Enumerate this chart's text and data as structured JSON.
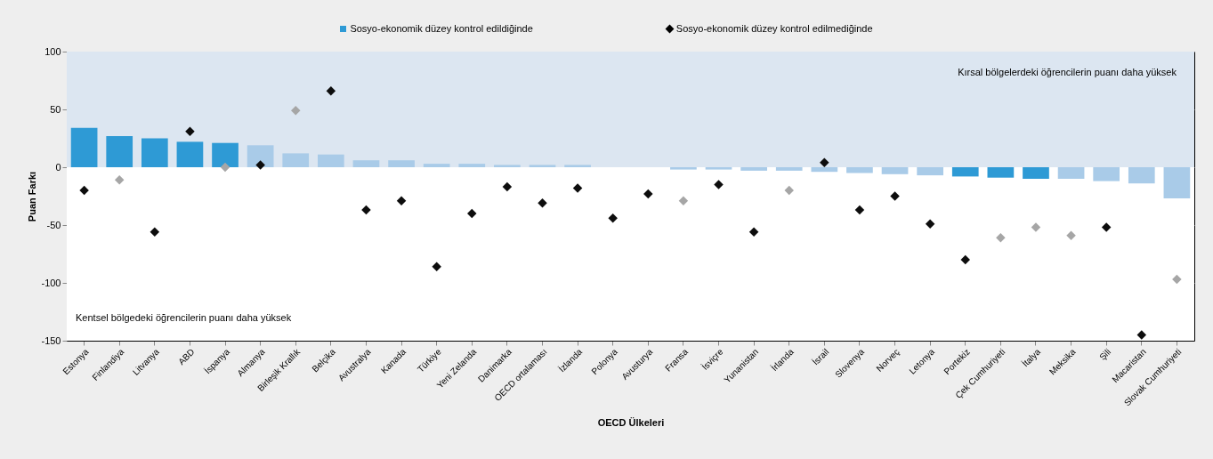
{
  "chart_data": {
    "type": "bar",
    "xlabel": "OECD Ülkeleri",
    "ylabel": "Puan Farkı",
    "categories": [
      "Estonya",
      "Finlandiya",
      "Litvanya",
      "ABD",
      "İspanya",
      "Almanya",
      "Birleşik Krallık",
      "Belçika",
      "Avustralya",
      "Kanada",
      "Türkiye",
      "Yeni Zelanda",
      "Danimarka",
      "OECD ortalaması",
      "İzlanda",
      "Polonya",
      "Avusturya",
      "Fransa",
      "İsviçre",
      "Yunanistan",
      "İrlanda",
      "İsrail",
      "Slovenya",
      "Norveç",
      "Letonya",
      "Portekiz",
      "Çek Cumhuriyeti",
      "İtalya",
      "Meksika",
      "Şili",
      "Macaristan",
      "Slovak Cumhuriyeti"
    ],
    "series": [
      {
        "name": "Sosyo-ekonomik düzey kontrol edildiğinde",
        "color": "#2e9ad5",
        "values": [
          34,
          27,
          25,
          22,
          21,
          19,
          12,
          11,
          6,
          6,
          3,
          3,
          2,
          2,
          2,
          0,
          0,
          -2,
          -2,
          -3,
          -3,
          -4,
          -5,
          -6,
          -7,
          -8,
          -9,
          -10,
          -10,
          -12,
          -14,
          -27
        ],
        "colors": [
          "#2e9ad5",
          "#2e9ad5",
          "#2e9ad5",
          "#2e9ad5",
          "#2e9ad5",
          "#a9cbe8",
          "#a9cbe8",
          "#a9cbe8",
          "#a9cbe8",
          "#a9cbe8",
          "#a9cbe8",
          "#a9cbe8",
          "#a9cbe8",
          "#a9cbe8",
          "#a9cbe8",
          "#a9cbe8",
          "#a9cbe8",
          "#a9cbe8",
          "#a9cbe8",
          "#a9cbe8",
          "#a9cbe8",
          "#a9cbe8",
          "#a9cbe8",
          "#a9cbe8",
          "#a9cbe8",
          "#2e9ad5",
          "#2e9ad5",
          "#2e9ad5",
          "#a9cbe8",
          "#a9cbe8",
          "#a9cbe8",
          "#a9cbe8"
        ]
      },
      {
        "name": "Sosyo-ekonomik düzey kontrol edilmediğinde",
        "type": "scatter",
        "marker": "diamond",
        "color": "#000000",
        "values": [
          -20,
          -11,
          -56,
          31,
          0,
          2,
          49,
          66,
          -37,
          -29,
          -86,
          -40,
          -17,
          -31,
          -18,
          -44,
          -23,
          -29,
          -15,
          -56,
          -20,
          4,
          -37,
          -25,
          -49,
          -80,
          -61,
          -52,
          -59,
          -52,
          -145,
          -97
        ],
        "colors": [
          "#0d0d0d",
          "#a6a6a6",
          "#0d0d0d",
          "#0d0d0d",
          "#a6a6a6",
          "#0d0d0d",
          "#a6a6a6",
          "#0d0d0d",
          "#0d0d0d",
          "#0d0d0d",
          "#0d0d0d",
          "#0d0d0d",
          "#0d0d0d",
          "#0d0d0d",
          "#0d0d0d",
          "#0d0d0d",
          "#0d0d0d",
          "#a6a6a6",
          "#0d0d0d",
          "#0d0d0d",
          "#a6a6a6",
          "#0d0d0d",
          "#0d0d0d",
          "#0d0d0d",
          "#0d0d0d",
          "#0d0d0d",
          "#a6a6a6",
          "#a6a6a6",
          "#a6a6a6",
          "#0d0d0d",
          "#0d0d0d",
          "#a6a6a6"
        ]
      }
    ],
    "ylim": [
      -150,
      100
    ],
    "yticks": [
      -150,
      -100,
      -50,
      0,
      50,
      100
    ],
    "grid": "y",
    "legend": "top",
    "bands": [
      {
        "axis": "y",
        "from": 0,
        "to": 100,
        "label": "Kırsal bölgelerdeki öğrencilerin puanı daha yüksek",
        "color": "#dce6f1"
      },
      {
        "axis": "y",
        "from": -150,
        "to": 0,
        "label": "Kentsel bölgedeki öğrencilerin puanı daha yüksek",
        "color": "#ffffff"
      }
    ]
  }
}
